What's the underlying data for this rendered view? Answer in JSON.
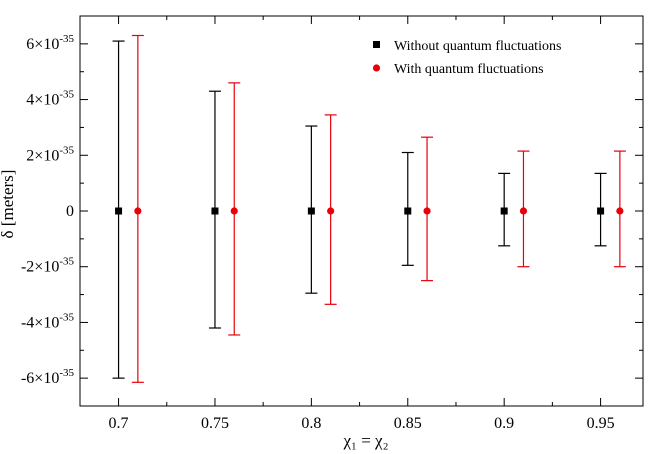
{
  "chart_data": {
    "type": "scatter",
    "error_bars": true,
    "xlabel": "χ₁ = χ₂",
    "ylabel": "δ [meters]",
    "xlim": [
      0.68,
      0.972
    ],
    "ylim": [
      -7e-35,
      7e-35
    ],
    "xticks": [
      0.7,
      0.75,
      0.8,
      0.85,
      0.9,
      0.95
    ],
    "xtick_labels": [
      "0.7",
      "0.75",
      "0.8",
      "0.85",
      "0.9",
      "0.95"
    ],
    "yticks": [
      -6e-35,
      -4e-35,
      -2e-35,
      0,
      2e-35,
      4e-35,
      6e-35
    ],
    "ytick_labels": [
      {
        "mant": "-6×10",
        "exp": "-35"
      },
      {
        "mant": "-4×10",
        "exp": "-35"
      },
      {
        "mant": "-2×10",
        "exp": "-35"
      },
      {
        "mant": "0",
        "exp": ""
      },
      {
        "mant": "2×10",
        "exp": "-35"
      },
      {
        "mant": "4×10",
        "exp": "-35"
      },
      {
        "mant": "6×10",
        "exp": "-35"
      }
    ],
    "grid": false,
    "legend_position": "top-right",
    "series": [
      {
        "name": "Without quantum fluctuations",
        "color": "#000000",
        "marker": "square",
        "x": [
          0.7,
          0.75,
          0.8,
          0.85,
          0.9,
          0.95
        ],
        "y": [
          0,
          0,
          0,
          0,
          0,
          0
        ],
        "err_upper": [
          6.1e-35,
          4.3e-35,
          3.05e-35,
          2.1e-35,
          1.35e-35,
          1.35e-35
        ],
        "err_lower": [
          6e-35,
          4.2e-35,
          2.95e-35,
          1.95e-35,
          1.25e-35,
          1.25e-35
        ]
      },
      {
        "name": "With quantum fluctuations",
        "color": "#e8000b",
        "marker": "circle",
        "x": [
          0.71,
          0.76,
          0.81,
          0.86,
          0.91,
          0.96
        ],
        "y": [
          0,
          0,
          0,
          0,
          0,
          0
        ],
        "err_upper": [
          6.3e-35,
          4.6e-35,
          3.45e-35,
          2.65e-35,
          2.15e-35,
          2.15e-35
        ],
        "err_lower": [
          6.15e-35,
          4.45e-35,
          3.35e-35,
          2.5e-35,
          2e-35,
          2e-35
        ]
      }
    ]
  }
}
